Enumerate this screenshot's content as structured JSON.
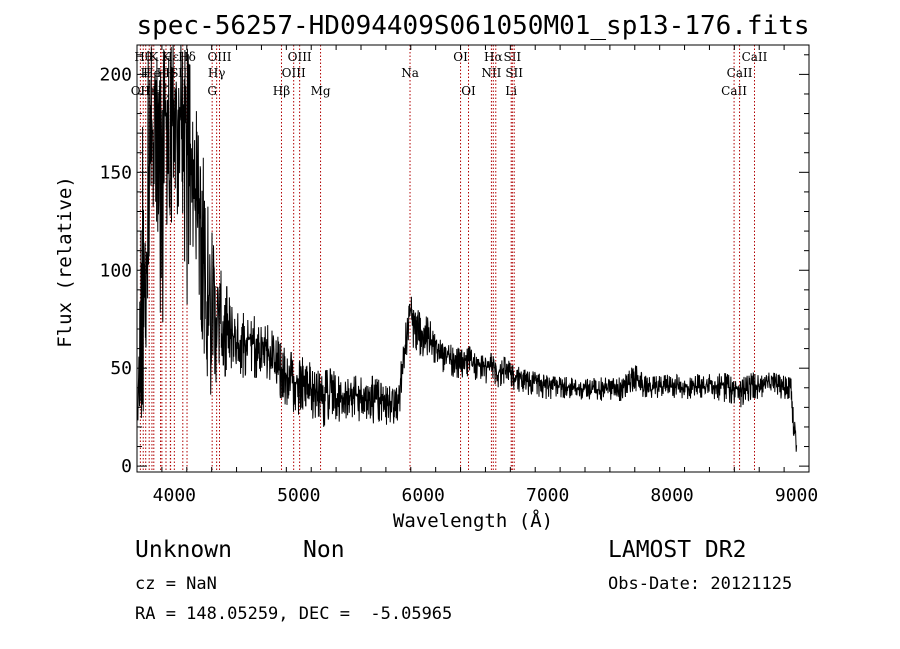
{
  "chart_data": {
    "type": "line",
    "title": "spec-56257-HD094409S061050M01_sp13-176.fits",
    "xlabel": "Wavelength (Å)",
    "ylabel": "Flux (relative)",
    "xlim": [
      3700,
      9100
    ],
    "ylim": [
      -3,
      215
    ],
    "xticks": [
      4000,
      5000,
      6000,
      7000,
      8000,
      9000
    ],
    "yticks": [
      0,
      50,
      100,
      150,
      200
    ],
    "grid": false,
    "series": [
      {
        "x": [
          3700,
          3750,
          3800,
          3850,
          3900,
          3950,
          4000,
          4050,
          4100,
          4150,
          4200,
          4250,
          4300,
          4350,
          4400,
          4450,
          4500,
          4550,
          4600,
          4650,
          4700,
          4750,
          4800,
          4850,
          4900,
          4950,
          5000,
          5050,
          5100,
          5150,
          5200,
          5250,
          5300,
          5350,
          5400,
          5450,
          5500,
          5550,
          5600,
          5650,
          5700,
          5750,
          5800,
          5820,
          5850,
          5880,
          5900,
          5950,
          6000,
          6050,
          6100,
          6150,
          6200,
          6250,
          6300,
          6350,
          6400,
          6450,
          6500,
          6550,
          6600,
          6650,
          6700,
          6750,
          6800,
          6850,
          6900,
          6950,
          7000,
          7100,
          7200,
          7300,
          7400,
          7500,
          7600,
          7700,
          7800,
          7900,
          8000,
          8100,
          8200,
          8300,
          8400,
          8500,
          8550,
          8600,
          8650,
          8700,
          8800,
          8900,
          8950,
          9000
        ],
        "y": [
          20,
          60,
          150,
          195,
          170,
          185,
          175,
          180,
          170,
          150,
          130,
          100,
          80,
          75,
          70,
          68,
          65,
          62,
          66,
          60,
          62,
          58,
          55,
          48,
          45,
          44,
          42,
          45,
          40,
          38,
          37,
          38,
          36,
          35,
          36,
          35,
          37,
          34,
          35,
          33,
          32,
          30,
          30,
          45,
          60,
          72,
          80,
          73,
          68,
          65,
          60,
          58,
          55,
          54,
          53,
          55,
          53,
          52,
          50,
          52,
          48,
          50,
          47,
          45,
          44,
          43,
          42,
          42,
          40,
          41,
          40,
          40,
          39,
          40,
          38,
          45,
          40,
          40,
          41,
          40,
          41,
          41,
          42,
          40,
          38,
          40,
          42,
          41,
          42,
          40,
          41,
          8
        ],
        "mins": [
          10,
          20,
          110,
          135,
          50,
          140,
          100,
          150,
          80,
          110,
          80,
          45,
          35,
          45,
          45,
          50,
          48,
          45,
          48,
          45,
          45,
          40,
          38,
          35,
          30,
          25,
          25,
          28,
          25,
          22,
          20,
          25,
          22,
          22,
          25,
          25,
          22,
          22,
          20,
          22,
          20,
          18,
          15,
          35,
          50,
          60,
          62,
          58,
          55,
          52,
          50,
          48,
          48,
          45,
          45,
          46,
          44,
          44,
          42,
          44,
          40,
          42,
          40,
          38,
          37,
          36,
          36,
          35,
          34,
          35,
          34,
          34,
          33,
          34,
          33,
          38,
          34,
          35,
          35,
          34,
          35,
          35,
          33,
          32,
          30,
          32,
          35,
          34,
          36,
          34,
          35,
          -2
        ],
        "maxs": [
          40,
          200,
          215,
          215,
          215,
          215,
          215,
          215,
          215,
          195,
          170,
          160,
          120,
          105,
          95,
          88,
          80,
          78,
          80,
          76,
          75,
          72,
          68,
          65,
          58,
          58,
          55,
          56,
          52,
          50,
          48,
          50,
          48,
          46,
          48,
          46,
          48,
          45,
          46,
          44,
          42,
          40,
          40,
          52,
          70,
          80,
          90,
          80,
          78,
          75,
          70,
          66,
          62,
          62,
          60,
          62,
          60,
          58,
          56,
          58,
          55,
          56,
          53,
          51,
          50,
          49,
          48,
          48,
          46,
          46,
          45,
          45,
          45,
          46,
          45,
          52,
          46,
          46,
          47,
          46,
          47,
          47,
          48,
          46,
          45,
          46,
          48,
          47,
          48,
          46,
          50,
          12
        ]
      }
    ],
    "line_markers": [
      {
        "wl": 3727,
        "label": "OII",
        "row": 3
      },
      {
        "wl": 3750,
        "label": "Hθ",
        "row": 1
      },
      {
        "wl": 3770,
        "label": "H",
        "row": 2
      },
      {
        "wl": 3798,
        "label": "Hη",
        "row": 3
      },
      {
        "wl": 3820,
        "label": "He",
        "row": 2
      },
      {
        "wl": 3835,
        "label": "K",
        "row": 1
      },
      {
        "wl": 3889,
        "label": "Hζ",
        "row": 3
      },
      {
        "wl": 3900,
        "label": "H",
        "row": 2
      },
      {
        "wl": 3933,
        "label": "K",
        "row": 1
      },
      {
        "wl": 3968,
        "label": "H",
        "row": 2
      },
      {
        "wl": 3970,
        "label": "Hε",
        "row": 1
      },
      {
        "wl": 4000,
        "label": "S",
        "row": 2
      },
      {
        "wl": 4102,
        "label": "Hδ",
        "row": 1
      },
      {
        "wl": 4068,
        "label": "II",
        "row": 2
      },
      {
        "wl": 4304,
        "label": "G",
        "row": 3
      },
      {
        "wl": 4340,
        "label": "Hγ",
        "row": 2
      },
      {
        "wl": 4363,
        "label": "OIII",
        "row": 1
      },
      {
        "wl": 4861,
        "label": "Hβ",
        "row": 3
      },
      {
        "wl": 4959,
        "label": "OIII",
        "row": 2
      },
      {
        "wl": 5007,
        "label": "OIII",
        "row": 1
      },
      {
        "wl": 5175,
        "label": "Mg",
        "row": 3
      },
      {
        "wl": 5894,
        "label": "Na",
        "row": 2
      },
      {
        "wl": 6300,
        "label": "OI",
        "row": 1
      },
      {
        "wl": 6364,
        "label": "OI",
        "row": 3
      },
      {
        "wl": 6548,
        "label": "NII",
        "row": 2
      },
      {
        "wl": 6563,
        "label": "Hα",
        "row": 1
      },
      {
        "wl": 6583,
        "label": "",
        "row": 1
      },
      {
        "wl": 6707,
        "label": "Li",
        "row": 3
      },
      {
        "wl": 6716,
        "label": "SII",
        "row": 1
      },
      {
        "wl": 6731,
        "label": "SII",
        "row": 2
      },
      {
        "wl": 8498,
        "label": "CaII",
        "row": 3
      },
      {
        "wl": 8542,
        "label": "CaII",
        "row": 2
      },
      {
        "wl": 8662,
        "label": "CaII",
        "row": 1
      }
    ]
  },
  "info": {
    "object_type": "Unknown",
    "subclass": "Non",
    "survey": "LAMOST DR2",
    "redshift_text": "cz = NaN",
    "obs_date_text": "Obs-Date: 20121125",
    "coords_text": "RA = 148.05259, DEC =  -5.05965"
  },
  "colors": {
    "line": "#000000",
    "marker": "#b00000",
    "background": "#ffffff"
  }
}
